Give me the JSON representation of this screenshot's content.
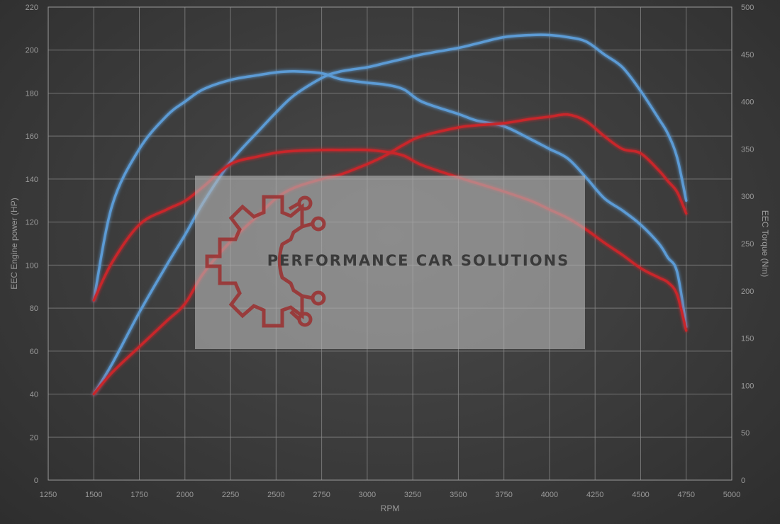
{
  "chart_data": {
    "type": "line",
    "title": "",
    "xlabel": "RPM",
    "ylabel": "EEC Engine power (HP)",
    "y2label": "EEC Torque (Nm)",
    "xlim": [
      1250,
      5000
    ],
    "ylim": [
      0,
      220
    ],
    "y2lim": [
      0,
      500
    ],
    "x_ticks": [
      1250,
      1500,
      1750,
      2000,
      2250,
      2500,
      2750,
      3000,
      3250,
      3500,
      3750,
      4000,
      4250,
      4500,
      4750,
      5000
    ],
    "y_ticks": [
      0,
      20,
      40,
      60,
      80,
      100,
      120,
      140,
      160,
      180,
      200,
      220
    ],
    "y2_ticks": [
      0,
      50,
      100,
      150,
      200,
      250,
      300,
      350,
      400,
      450,
      500
    ],
    "grid": true,
    "legend": "none",
    "series": [
      {
        "axis": "left",
        "color": "#5b9bd5",
        "x": [
          1500,
          1600,
          1750,
          1900,
          2000,
          2100,
          2250,
          2400,
          2500,
          2600,
          2750,
          2850,
          3000,
          3100,
          3200,
          3300,
          3500,
          3600,
          3750,
          3900,
          4000,
          4100,
          4200,
          4300,
          4400,
          4500,
          4600,
          4650,
          4700,
          4750
        ],
        "y": [
          40,
          54,
          78,
          100,
          114,
          129,
          148,
          162,
          171,
          179,
          187,
          190,
          192,
          194,
          196,
          198,
          201,
          203,
          206,
          207,
          207,
          206,
          204,
          198,
          192,
          181,
          168,
          161,
          150,
          130
        ]
      },
      {
        "axis": "right",
        "color": "#5b9bd5",
        "x": [
          1500,
          1600,
          1750,
          1900,
          2000,
          2100,
          2250,
          2400,
          2500,
          2600,
          2750,
          2850,
          3000,
          3100,
          3200,
          3300,
          3500,
          3600,
          3750,
          3900,
          4000,
          4100,
          4200,
          4300,
          4400,
          4500,
          4600,
          4650,
          4700,
          4750
        ],
        "y": [
          190,
          290,
          350,
          385,
          400,
          413,
          423,
          428,
          431,
          432,
          430,
          424,
          420,
          418,
          413,
          400,
          387,
          380,
          374,
          360,
          350,
          340,
          320,
          298,
          285,
          270,
          250,
          235,
          220,
          162
        ]
      },
      {
        "axis": "left",
        "color": "#c9252c",
        "x": [
          1500,
          1600,
          1750,
          1900,
          2000,
          2100,
          2250,
          2400,
          2500,
          2600,
          2750,
          2850,
          3000,
          3100,
          3200,
          3300,
          3500,
          3600,
          3750,
          3900,
          4000,
          4100,
          4200,
          4300,
          4400,
          4500,
          4600,
          4650,
          4700,
          4750
        ],
        "y": [
          40,
          50,
          62,
          74,
          82,
          96,
          111,
          123,
          131,
          136,
          140,
          142,
          147,
          151,
          156,
          160,
          164,
          165,
          166,
          168,
          169,
          170,
          167,
          160,
          154,
          152,
          144,
          139,
          134,
          124
        ]
      },
      {
        "axis": "right",
        "color": "#c9252c",
        "x": [
          1500,
          1600,
          1750,
          1900,
          2000,
          2100,
          2250,
          2400,
          2500,
          2600,
          2750,
          2850,
          3000,
          3100,
          3200,
          3300,
          3500,
          3600,
          3750,
          3900,
          4000,
          4100,
          4200,
          4300,
          4400,
          4500,
          4600,
          4650,
          4700,
          4750
        ],
        "y": [
          190,
          230,
          270,
          286,
          295,
          310,
          334,
          342,
          346,
          348,
          349,
          349,
          349,
          347,
          343,
          333,
          320,
          314,
          305,
          295,
          286,
          277,
          265,
          251,
          238,
          224,
          214,
          209,
          196,
          158
        ]
      }
    ]
  },
  "watermark": {
    "text": "PERFORMANCE CAR SOLUTIONS",
    "logo_color": "#9b2f2f"
  }
}
